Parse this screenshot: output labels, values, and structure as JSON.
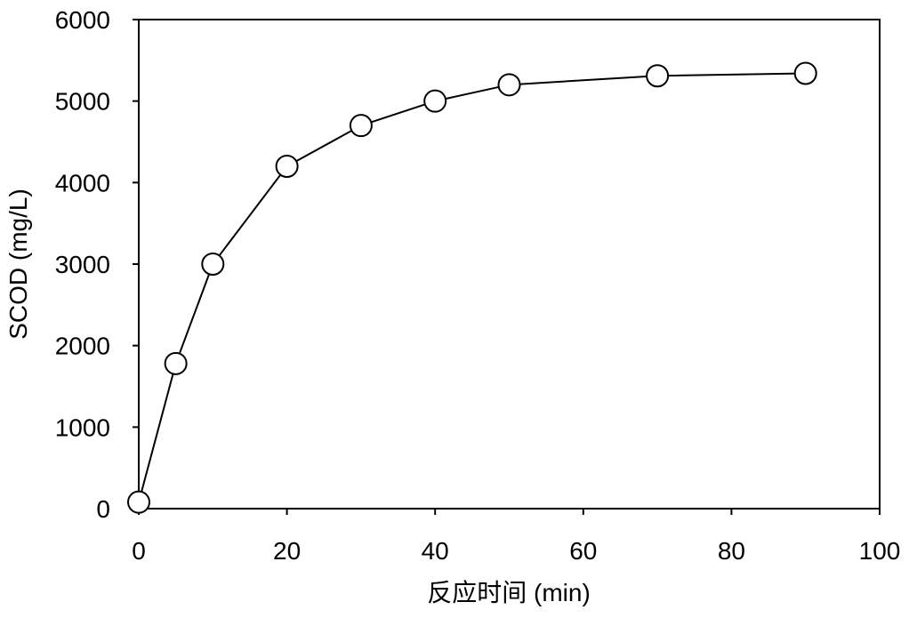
{
  "chart_data": {
    "type": "line",
    "xlabel": "反应时间 (min)",
    "ylabel": "SCOD (mg/L)",
    "xlim": [
      0,
      100
    ],
    "ylim": [
      0,
      6000
    ],
    "xticks": [
      "0",
      "20",
      "40",
      "60",
      "80",
      "100"
    ],
    "yticks": [
      "0",
      "1000",
      "2000",
      "3000",
      "4000",
      "5000",
      "6000"
    ],
    "grid": false,
    "marker": "open-circle",
    "series": [
      {
        "x": [
          0,
          5,
          10,
          20,
          30,
          40,
          50,
          70,
          90
        ],
        "y": [
          80,
          1780,
          3000,
          4200,
          4700,
          5000,
          5200,
          5310,
          5340
        ]
      }
    ]
  }
}
